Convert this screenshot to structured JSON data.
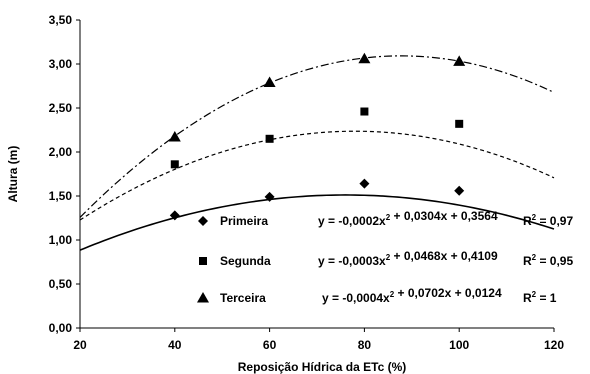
{
  "chart_data": {
    "type": "scatter",
    "xlabel": "Reposição Hídrica da ETc (%)",
    "ylabel": "Altura (m)",
    "xlim": [
      20,
      120
    ],
    "ylim": [
      0,
      3.5
    ],
    "x_ticks": [
      "20",
      "40",
      "60",
      "80",
      "100",
      "120"
    ],
    "y_ticks": [
      "0,00",
      "0,50",
      "1,00",
      "1,50",
      "2,00",
      "2,50",
      "3,00",
      "3,50"
    ],
    "grid": false,
    "legend": "bottom-right inside plot",
    "series": [
      {
        "name": "Primeira",
        "marker": "diamond",
        "line_style": "solid",
        "x": [
          40,
          60,
          80,
          100
        ],
        "y": [
          1.28,
          1.49,
          1.64,
          1.56
        ],
        "fit": {
          "a": -0.0002,
          "b": 0.0304,
          "c": 0.3564
        },
        "equation": {
          "lhs": "y = -0,0002x",
          "exp": "2",
          "rhs": " + 0,0304x + 0,3564",
          "r2_label": "R",
          "r2_exp": "2",
          "r2_value": " = 0,97"
        }
      },
      {
        "name": "Segunda",
        "marker": "square",
        "line_style": "dashed",
        "x": [
          40,
          60,
          80,
          100
        ],
        "y": [
          1.86,
          2.15,
          2.46,
          2.32
        ],
        "fit": {
          "a": -0.0003,
          "b": 0.0468,
          "c": 0.4109
        },
        "equation": {
          "lhs": "y = -0,0003x",
          "exp": "2",
          "rhs": " + 0,0468x + 0,4109",
          "r2_label": "R",
          "r2_exp": "2",
          "r2_value": " = 0,95"
        }
      },
      {
        "name": "Terceira",
        "marker": "triangle",
        "line_style": "dash-dot",
        "x": [
          40,
          60,
          80,
          100
        ],
        "y": [
          2.17,
          2.79,
          3.06,
          3.03
        ],
        "fit": {
          "a": -0.0004,
          "b": 0.0702,
          "c": 0.0124
        },
        "equation": {
          "lhs": "y = -0,0004x",
          "exp": "2",
          "rhs": " + 0,0702x + 0,0124",
          "r2_label": "R",
          "r2_exp": "2",
          "r2_value": " = 1"
        }
      }
    ]
  }
}
